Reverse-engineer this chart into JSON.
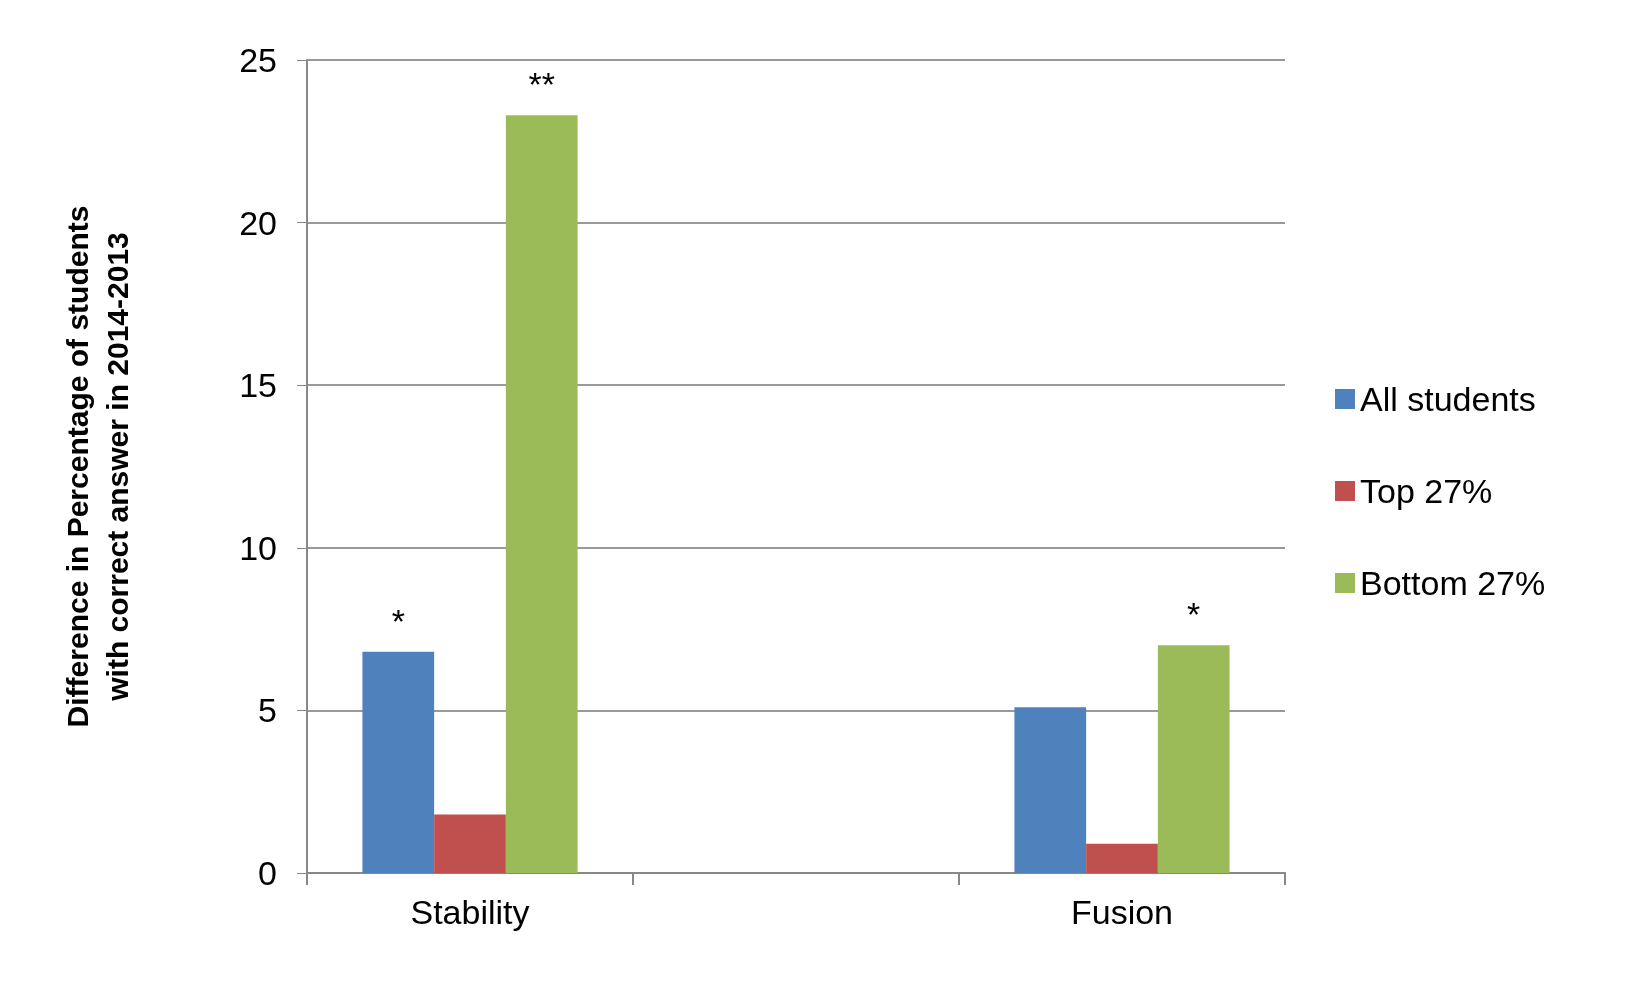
{
  "chart_data": {
    "type": "bar",
    "ylabel": "Difference in Percentage of students with correct answer in 2014-2013",
    "categories": [
      "Stability",
      null,
      "Fusion"
    ],
    "series": [
      {
        "name": "All students",
        "color": "#4f81bd",
        "values": [
          6.8,
          null,
          5.1
        ]
      },
      {
        "name": "Top 27%",
        "color": "#c0504d",
        "values": [
          1.8,
          null,
          0.9
        ]
      },
      {
        "name": "Bottom 27%",
        "color": "#9bbb59",
        "values": [
          23.3,
          null,
          7.0
        ]
      }
    ],
    "ylim": [
      0,
      25
    ],
    "yticks": [
      0,
      5,
      10,
      15,
      20,
      25
    ],
    "grid": "y",
    "legend": "right",
    "annotations": [
      "*",
      "**",
      "*"
    ]
  }
}
